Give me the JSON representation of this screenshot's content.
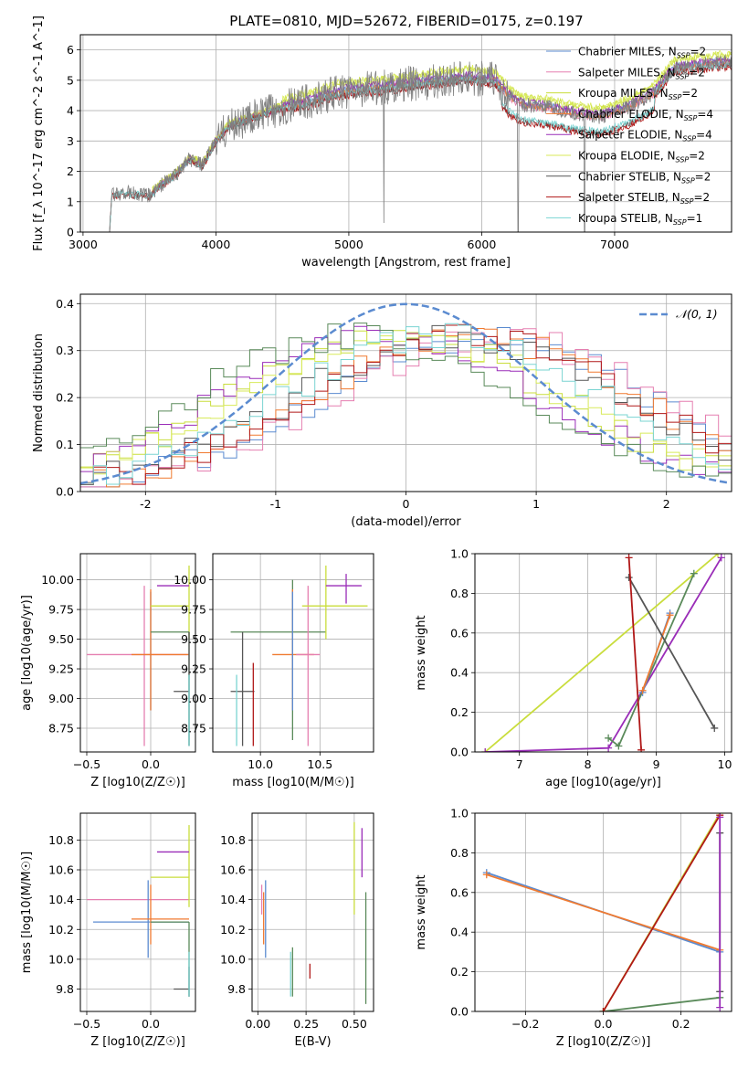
{
  "figure": {
    "title": "PLATE=0810, MJD=52672, FIBERID=0175, z=0.197"
  },
  "colors": {
    "Chabrier MILES": "#5b8bd0",
    "Salpeter MILES": "#e57fb0",
    "Kroupa MILES": "#c9dd3c",
    "Chabrier ELODIE": "#f07a30",
    "Salpeter ELODIE": "#9a2db8",
    "Kroupa ELODIE": "#d8ea5a",
    "Chabrier STELIB": "#555555",
    "Salpeter STELIB": "#b01818",
    "Kroupa STELIB": "#7ad4d2",
    "grid": "#b0b0b0",
    "normal": "#5b8bd0",
    "data": "#808080",
    "dark_green": "#5a8a5a"
  },
  "chart_data": [
    {
      "id": "spectrum",
      "type": "line",
      "xlabel": "wavelength [Angstrom, rest frame]",
      "ylabel": "Flux [f_λ 10^-17 erg cm^-2 s^-1 A^-1]",
      "xlim": [
        2980,
        7880
      ],
      "ylim": [
        0,
        6.5
      ],
      "xticks": [
        3000,
        4000,
        5000,
        6000,
        7000
      ],
      "yticks": [
        0,
        1,
        2,
        3,
        4,
        5,
        6
      ],
      "grid": true,
      "legend": "top-right",
      "legend_entries": [
        {
          "label": "Chabrier MILES, N",
          "sub": "SSP",
          "suffix": "=2"
        },
        {
          "label": "Salpeter MILES, N",
          "sub": "SSP",
          "suffix": "=2"
        },
        {
          "label": "Kroupa MILES, N",
          "sub": "SSP",
          "suffix": "=2"
        },
        {
          "label": "Chabrier ELODIE, N",
          "sub": "SSP",
          "suffix": "=4"
        },
        {
          "label": "Salpeter ELODIE, N",
          "sub": "SSP",
          "suffix": "=4"
        },
        {
          "label": "Kroupa ELODIE, N",
          "sub": "SSP",
          "suffix": "=2"
        },
        {
          "label": "Chabrier STELIB, N",
          "sub": "SSP",
          "suffix": "=2"
        },
        {
          "label": "Salpeter STELIB, N",
          "sub": "SSP",
          "suffix": "=2"
        },
        {
          "label": "Kroupa STELIB, N",
          "sub": "SSP",
          "suffix": "=1"
        }
      ],
      "continuum": [
        [
          3200,
          0.0
        ],
        [
          3215,
          1.2
        ],
        [
          3300,
          1.3
        ],
        [
          3500,
          1.2
        ],
        [
          3600,
          1.6
        ],
        [
          3700,
          1.9
        ],
        [
          3800,
          2.4
        ],
        [
          3900,
          2.2
        ],
        [
          4000,
          3.0
        ],
        [
          4100,
          3.5
        ],
        [
          4300,
          3.8
        ],
        [
          4500,
          4.1
        ],
        [
          4700,
          4.3
        ],
        [
          4900,
          4.6
        ],
        [
          5100,
          4.7
        ],
        [
          5300,
          4.8
        ],
        [
          5500,
          4.9
        ],
        [
          5700,
          5.0
        ],
        [
          5900,
          5.1
        ],
        [
          6100,
          5.0
        ],
        [
          6200,
          4.5
        ],
        [
          6300,
          4.2
        ],
        [
          6500,
          4.1
        ],
        [
          6700,
          3.9
        ],
        [
          6900,
          3.8
        ],
        [
          7100,
          4.1
        ],
        [
          7300,
          4.6
        ],
        [
          7450,
          5.4
        ],
        [
          7880,
          5.6
        ]
      ]
    },
    {
      "id": "residuals",
      "type": "line",
      "xlabel": "(data-model)/error",
      "ylabel": "Normed distribution",
      "xlim": [
        -2.5,
        2.5
      ],
      "ylim": [
        0,
        0.42
      ],
      "xticks": [
        -2,
        -1,
        0,
        1,
        2
      ],
      "yticks": [
        0.0,
        0.1,
        0.2,
        0.3,
        0.4
      ],
      "grid": true,
      "legend": "top-right",
      "legend_label": "𝒩(0, 1)"
    },
    {
      "id": "age_vs_Z",
      "type": "scatter",
      "xlabel": "Z [log10(Z/Z☉)]",
      "ylabel": "age  [log10(age/yr)]",
      "xlim": [
        -0.55,
        0.35
      ],
      "ylim": [
        8.55,
        10.22
      ],
      "xticks": [
        -0.5,
        0.0
      ],
      "xticklabels": [
        "−0.5",
        "0.0"
      ],
      "yticks": [
        8.75,
        9.0,
        9.25,
        9.5,
        9.75,
        10.0
      ],
      "grid": true,
      "points": [
        {
          "c": "Salpeter MILES",
          "x": -0.05,
          "xe": [
            -0.5,
            0.3
          ],
          "y": 9.37,
          "ye": [
            8.6,
            9.95
          ]
        },
        {
          "c": "Chabrier MILES",
          "x": 0.0,
          "xe": [
            0.0,
            0.0
          ],
          "y": 9.4,
          "ye": [
            8.9,
            9.9
          ]
        },
        {
          "c": "Chabrier ELODIE",
          "x": 0.0,
          "xe": [
            -0.15,
            0.3
          ],
          "y": 9.37,
          "ye": [
            8.9,
            9.92
          ]
        },
        {
          "c": "Kroupa MILES",
          "x": 0.3,
          "xe": [
            0.0,
            0.3
          ],
          "y": 9.78,
          "ye": [
            9.5,
            10.12
          ]
        },
        {
          "c": "Salpeter ELODIE",
          "x": 0.3,
          "xe": [
            0.05,
            0.3
          ],
          "y": 9.95,
          "ye": [
            9.95,
            9.95
          ]
        },
        {
          "c": "dark_green",
          "x": 0.3,
          "xe": [
            0.0,
            0.3
          ],
          "y": 9.56,
          "ye": [
            8.6,
            9.56
          ]
        },
        {
          "c": "Chabrier STELIB",
          "x": 0.3,
          "xe": [
            0.18,
            0.3
          ],
          "y": 9.06,
          "ye": [
            8.6,
            9.56
          ]
        },
        {
          "c": "Kroupa STELIB",
          "x": 0.3,
          "xe": [
            0.3,
            0.3
          ],
          "y": 8.9,
          "ye": [
            8.6,
            9.2
          ]
        }
      ]
    },
    {
      "id": "age_vs_mass",
      "type": "scatter",
      "xlabel": "mass [log10(M/M☉)]",
      "ylabel": "",
      "xlim": [
        9.6,
        10.95
      ],
      "ylim": [
        8.55,
        10.22
      ],
      "xticks": [
        10.0,
        10.5
      ],
      "xticklabels": [
        "10.0",
        "10.5"
      ],
      "yticks": [
        8.75,
        9.0,
        9.25,
        9.5,
        9.75,
        10.0
      ],
      "grid": true,
      "points": [
        {
          "c": "dark_green",
          "x": 10.27,
          "xe": [
            9.75,
            10.55
          ],
          "y": 9.56,
          "ye": [
            8.65,
            10.0
          ]
        },
        {
          "c": "Chabrier STELIB",
          "x": 9.85,
          "xe": [
            9.75,
            9.95
          ],
          "y": 9.06,
          "ye": [
            8.6,
            9.56
          ]
        },
        {
          "c": "Kroupa STELIB",
          "x": 9.8,
          "xe": [
            9.8,
            9.8
          ],
          "y": 8.9,
          "ye": [
            8.6,
            9.2
          ]
        },
        {
          "c": "Salpeter STELIB",
          "x": 9.94,
          "xe": [
            9.94,
            9.94
          ],
          "y": 8.9,
          "ye": [
            8.6,
            9.3
          ]
        },
        {
          "c": "Chabrier ELODIE",
          "x": 10.27,
          "xe": [
            10.1,
            10.45
          ],
          "y": 9.37,
          "ye": [
            8.9,
            9.92
          ]
        },
        {
          "c": "Salpeter MILES",
          "x": 10.4,
          "xe": [
            10.3,
            10.5
          ],
          "y": 9.37,
          "ye": [
            8.6,
            9.95
          ]
        },
        {
          "c": "Chabrier MILES",
          "x": 10.27,
          "xe": [
            10.27,
            10.27
          ],
          "y": 9.4,
          "ye": [
            8.9,
            9.9
          ]
        },
        {
          "c": "Kroupa MILES",
          "x": 10.55,
          "xe": [
            10.35,
            10.9
          ],
          "y": 9.78,
          "ye": [
            9.5,
            10.12
          ]
        },
        {
          "c": "Salpeter ELODIE",
          "x": 10.72,
          "xe": [
            10.55,
            10.85
          ],
          "y": 9.95,
          "ye": [
            9.8,
            10.05
          ]
        }
      ]
    },
    {
      "id": "weight_vs_age",
      "type": "line",
      "xlabel": "age  [log10(age/yr)]",
      "ylabel": "mass weight",
      "xlim": [
        6.35,
        10.1
      ],
      "ylim": [
        0,
        1.0
      ],
      "xticks": [
        7,
        8,
        9,
        10
      ],
      "yticks": [
        0.0,
        0.2,
        0.4,
        0.6,
        0.8,
        1.0
      ],
      "grid": true,
      "series": [
        {
          "c": "Kroupa MILES",
          "x": [
            6.5,
            9.9
          ],
          "y": [
            0.0,
            1.0
          ]
        },
        {
          "c": "Salpeter ELODIE",
          "x": [
            6.5,
            8.3,
            9.95
          ],
          "y": [
            0.0,
            0.02,
            0.98
          ]
        },
        {
          "c": "dark_green",
          "x": [
            8.3,
            8.45,
            9.55
          ],
          "y": [
            0.07,
            0.03,
            0.9
          ]
        },
        {
          "c": "Chabrier MILES",
          "x": [
            8.8,
            9.2
          ],
          "y": [
            0.3,
            0.7
          ]
        },
        {
          "c": "Chabrier ELODIE",
          "x": [
            8.8,
            9.2
          ],
          "y": [
            0.31,
            0.69
          ]
        },
        {
          "c": "Chabrier STELIB",
          "x": [
            8.6,
            9.85
          ],
          "y": [
            0.88,
            0.12
          ]
        },
        {
          "c": "Salpeter STELIB",
          "x": [
            8.6,
            8.78
          ],
          "y": [
            0.98,
            0.01
          ]
        }
      ]
    },
    {
      "id": "mass_vs_Z",
      "type": "scatter",
      "xlabel": "Z [log10(Z/Z☉)]",
      "ylabel": "mass [log10(M/M☉)]",
      "xlim": [
        -0.55,
        0.35
      ],
      "ylim": [
        9.65,
        10.98
      ],
      "xticks": [
        -0.5,
        0.0
      ],
      "xticklabels": [
        "−0.5",
        "0.0"
      ],
      "yticks": [
        9.8,
        10.0,
        10.2,
        10.4,
        10.6,
        10.8
      ],
      "grid": true,
      "points": [
        {
          "c": "Salpeter MILES",
          "x": -0.05,
          "xe": [
            -0.5,
            0.3
          ],
          "y": 10.4,
          "ye": [
            10.4,
            10.4
          ]
        },
        {
          "c": "Chabrier MILES",
          "x": -0.02,
          "xe": [
            -0.45,
            0.3
          ],
          "y": 10.25,
          "ye": [
            10.01,
            10.53
          ]
        },
        {
          "c": "Chabrier ELODIE",
          "x": 0.0,
          "xe": [
            -0.15,
            0.3
          ],
          "y": 10.27,
          "ye": [
            10.1,
            10.5
          ]
        },
        {
          "c": "Kroupa MILES",
          "x": 0.3,
          "xe": [
            0.0,
            0.3
          ],
          "y": 10.55,
          "ye": [
            10.35,
            10.9
          ]
        },
        {
          "c": "Salpeter ELODIE",
          "x": 0.3,
          "xe": [
            0.05,
            0.3
          ],
          "y": 10.72,
          "ye": [
            10.72,
            10.72
          ]
        },
        {
          "c": "dark_green",
          "x": 0.3,
          "xe": [
            0.0,
            0.3
          ],
          "y": 10.25,
          "ye": [
            9.75,
            10.25
          ]
        },
        {
          "c": "Chabrier STELIB",
          "x": 0.3,
          "xe": [
            0.18,
            0.3
          ],
          "y": 9.8,
          "ye": [
            9.75,
            9.95
          ]
        },
        {
          "c": "Kroupa STELIB",
          "x": 0.3,
          "xe": [
            0.3,
            0.3
          ],
          "y": 9.85,
          "ye": [
            9.75,
            10.05
          ]
        }
      ]
    },
    {
      "id": "mass_vs_ebv",
      "type": "scatter",
      "xlabel": "E(B-V)",
      "ylabel": "",
      "xlim": [
        -0.03,
        0.6
      ],
      "ylim": [
        9.65,
        10.98
      ],
      "xticks": [
        0.0,
        0.25,
        0.5
      ],
      "xticklabels": [
        "0.00",
        "0.25",
        "0.50"
      ],
      "yticks": [
        9.8,
        10.0,
        10.2,
        10.4,
        10.6,
        10.8
      ],
      "grid": true,
      "points": [
        {
          "c": "Salpeter MILES",
          "x": 0.02,
          "y": 10.4,
          "ye": [
            10.3,
            10.5
          ]
        },
        {
          "c": "Chabrier MILES",
          "x": 0.04,
          "y": 10.25,
          "ye": [
            10.01,
            10.53
          ]
        },
        {
          "c": "Chabrier ELODIE",
          "x": 0.03,
          "y": 10.27,
          "ye": [
            10.1,
            10.45
          ]
        },
        {
          "c": "dark_green",
          "x": 0.18,
          "y": 9.9,
          "ye": [
            9.75,
            10.08
          ]
        },
        {
          "c": "Kroupa STELIB",
          "x": 0.17,
          "y": 9.85,
          "ye": [
            9.75,
            10.05
          ]
        },
        {
          "c": "Salpeter STELIB",
          "x": 0.27,
          "y": 9.92,
          "ye": [
            9.87,
            9.97
          ]
        },
        {
          "c": "Kroupa MILES",
          "x": 0.5,
          "y": 10.6,
          "ye": [
            10.3,
            10.92
          ]
        },
        {
          "c": "Salpeter ELODIE",
          "x": 0.54,
          "y": 10.72,
          "ye": [
            10.55,
            10.88
          ]
        },
        {
          "c": "dark_green",
          "x": 0.56,
          "y": 10.1,
          "ye": [
            9.7,
            10.45
          ]
        }
      ]
    },
    {
      "id": "weight_vs_Z",
      "type": "line",
      "xlabel": "Z [log10(Z/Z☉)]",
      "ylabel": "mass weight",
      "xlim": [
        -0.33,
        0.33
      ],
      "ylim": [
        0,
        1.0
      ],
      "xticks": [
        -0.2,
        0.0,
        0.2
      ],
      "xticklabels": [
        "−0.2",
        "0.0",
        "0.2"
      ],
      "yticks": [
        0.0,
        0.2,
        0.4,
        0.6,
        0.8,
        1.0
      ],
      "grid": true,
      "series": [
        {
          "c": "Chabrier MILES",
          "x": [
            -0.3,
            0.3
          ],
          "y": [
            0.7,
            0.3
          ]
        },
        {
          "c": "Chabrier ELODIE",
          "x": [
            -0.3,
            0.3
          ],
          "y": [
            0.69,
            0.31
          ]
        },
        {
          "c": "dark_green",
          "x": [
            0.0,
            0.3
          ],
          "y": [
            0.0,
            0.07
          ]
        },
        {
          "c": "Kroupa MILES",
          "x": [
            0.0,
            0.3
          ],
          "y": [
            0.0,
            1.0
          ]
        },
        {
          "c": "Salpeter STELIB",
          "x": [
            0.0,
            0.3
          ],
          "y": [
            0.0,
            0.99
          ]
        },
        {
          "c": "Chabrier STELIB",
          "x": [
            0.3,
            0.3
          ],
          "y": [
            0.1,
            0.9
          ]
        },
        {
          "c": "Salpeter ELODIE",
          "x": [
            0.3,
            0.3
          ],
          "y": [
            0.02,
            0.98
          ]
        }
      ]
    }
  ]
}
